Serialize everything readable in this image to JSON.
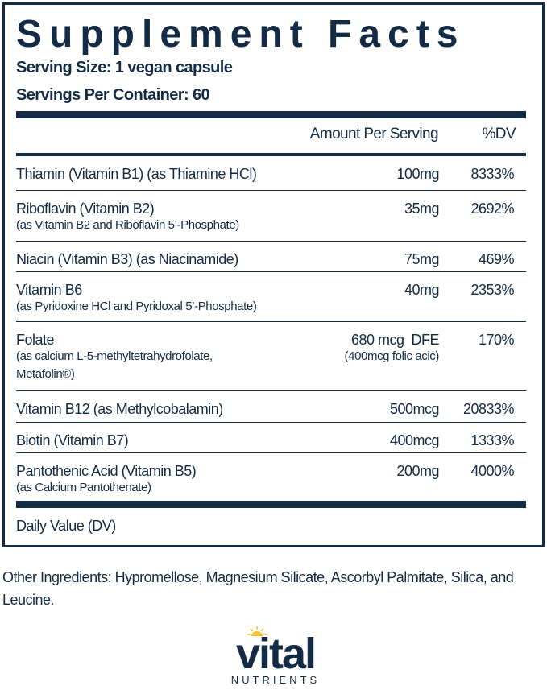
{
  "title": "Supplement Facts",
  "serving_size": "Serving Size: 1 vegan capsule",
  "servings_per_container": "Servings Per Container: 60",
  "columns": {
    "amount": "Amount Per Serving",
    "dv": "%DV"
  },
  "rows": [
    {
      "name": "Thiamin (Vitamin B1) (as Thiamine HCl)",
      "sub": "",
      "amount": "100mg",
      "amount_sub": "",
      "dv": "8333%"
    },
    {
      "name": "Riboflavin (Vitamin B2)",
      "sub": "(as Vitamin B2 and Riboflavin 5’-Phosphate)",
      "amount": "35mg",
      "amount_sub": "",
      "dv": "2692%"
    },
    {
      "name": "Niacin (Vitamin B3) (as Niacinamide)",
      "sub": "",
      "amount": "75mg",
      "amount_sub": "",
      "dv": "469%"
    },
    {
      "name": "Vitamin B6",
      "sub": "(as Pyridoxine HCl and Pyridoxal 5’-Phosphate)",
      "amount": "40mg",
      "amount_sub": "",
      "dv": "2353%"
    },
    {
      "name": "Folate",
      "sub": "(as calcium L-5-methyltetrahydrofolate,",
      "sub2": "Metafolin®)",
      "amount": "680 mcg  DFE",
      "amount_sub": "(400mcg folic acic)",
      "dv": "170%"
    },
    {
      "name": "Vitamin B12 (as Methylcobalamin)",
      "sub": "",
      "amount": "500mcg",
      "amount_sub": "",
      "dv": "20833%"
    },
    {
      "name": "Biotin (Vitamin B7)",
      "sub": "",
      "amount": "400mcg",
      "amount_sub": "",
      "dv": "1333%"
    },
    {
      "name": "Pantothenic Acid (Vitamin B5)",
      "sub": "(as Calcium Pantothenate)",
      "amount": "200mg",
      "amount_sub": "",
      "dv": "4000%"
    }
  ],
  "dv_note": "Daily Value (DV)",
  "other_ingredients": "Other Ingredients: Hypromellose, Magnesium Silicate, Ascorbyl Palmitate, Silica, and Leucine.",
  "logo": {
    "word": "vital",
    "tagline": "NUTRIENTS",
    "color": "#132b45",
    "sun_color": "#f2c230"
  }
}
